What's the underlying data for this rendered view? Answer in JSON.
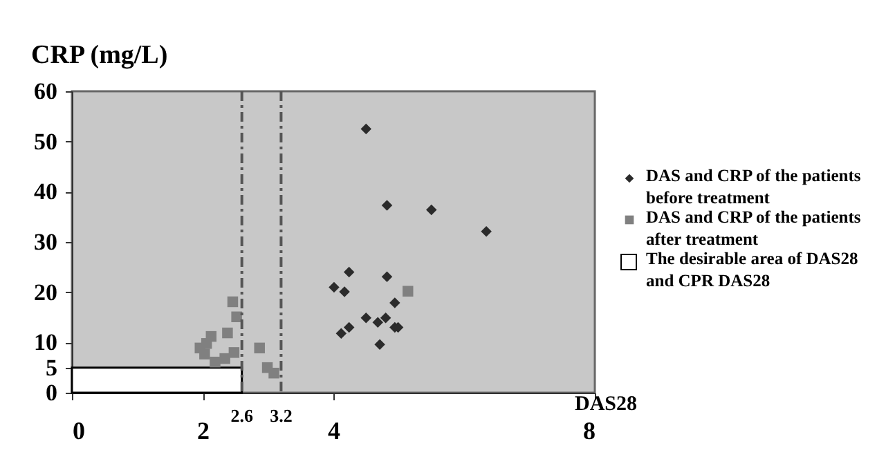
{
  "chart_data": {
    "type": "scatter",
    "ylabel": "CRP  (mg/L)",
    "xlabel": "DAS28",
    "xlim": [
      0,
      8
    ],
    "xticks": [
      0,
      2,
      4,
      8
    ],
    "ylim": [
      0,
      60
    ],
    "yticks": [
      0,
      5,
      10,
      20,
      30,
      40,
      50,
      60
    ],
    "grid": false,
    "legend": "right",
    "series": [
      {
        "name": "DAS and CRP of the patients before treatment",
        "marker": "diamond",
        "color": "#2b2b2b",
        "x": [
          4.5,
          4.82,
          5.5,
          6.34,
          4.24,
          4.01,
          4.17,
          4.82,
          4.94,
          4.5,
          4.68,
          4.8,
          4.94,
          4.99,
          4.24,
          4.12,
          4.71
        ],
        "values": [
          52.5,
          37.3,
          36.4,
          32.1,
          24.0,
          21.0,
          20.1,
          23.1,
          17.9,
          14.9,
          14.0,
          14.9,
          13.0,
          13.0,
          13.0,
          11.8,
          9.6
        ]
      },
      {
        "name": "DAS and CRP of the patients after treatment",
        "marker": "square",
        "color": "#808080",
        "x": [
          5.14,
          2.46,
          2.52,
          2.38,
          2.13,
          2.06,
          1.96,
          2.03,
          2.48,
          2.34,
          2.19,
          2.87,
          2.99,
          3.09
        ],
        "values": [
          20.2,
          18.1,
          15.1,
          11.9,
          11.2,
          9.8,
          8.9,
          7.7,
          8.0,
          6.8,
          6.1,
          8.9,
          5.0,
          3.9
        ]
      },
      {
        "name": "The desirable area of DAS28 and CPR DAS28",
        "type": "area",
        "color": "#ffffff",
        "x": [
          0,
          2.6
        ],
        "values": [
          5,
          5
        ]
      }
    ],
    "ref_lines": [
      {
        "axis": "x",
        "value": 2.6,
        "label": "2.6",
        "line_style": "dashdot",
        "color": "#555555"
      },
      {
        "axis": "x",
        "value": 3.2,
        "label": "3.2",
        "line_style": "dashdot",
        "color": "#555555"
      }
    ]
  }
}
